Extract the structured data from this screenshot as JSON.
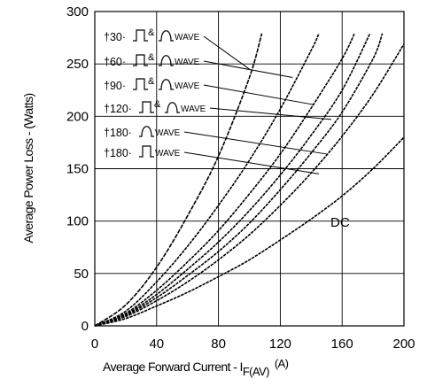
{
  "chart_data": {
    "type": "line",
    "title": "",
    "xlabel": "Average Forward Current - I",
    "xlabel_sub": "F(AV)",
    "xlabel_unit": "(A)",
    "ylabel": "Average Power Loss - (Watts)",
    "xlim": [
      0,
      200
    ],
    "ylim": [
      0,
      300
    ],
    "xticks": [
      "0",
      "40",
      "80",
      "120",
      "160",
      "200"
    ],
    "yticks": [
      "0",
      "50",
      "100",
      "150",
      "200",
      "250",
      "300"
    ],
    "grid": true,
    "legend_labels": [
      {
        "prefix": "†",
        "angle": "30",
        "waves": "square-sine",
        "amp": "&",
        "suffix": "WAVE"
      },
      {
        "prefix": "†",
        "angle": "60",
        "waves": "square-sine",
        "amp": "&",
        "suffix": "WAVE"
      },
      {
        "prefix": "†",
        "angle": "90",
        "waves": "square-sine",
        "amp": "&",
        "suffix": "WAVE"
      },
      {
        "prefix": "†",
        "angle": "120",
        "waves": "square-sine",
        "amp": "&",
        "suffix": "WAVE"
      },
      {
        "prefix": "†",
        "angle": "180",
        "waves": "sine",
        "amp": "",
        "suffix": "WAVE"
      },
      {
        "prefix": "†",
        "angle": "180",
        "waves": "square",
        "amp": "",
        "suffix": "WAVE"
      }
    ],
    "dc_label": "DC",
    "series": [
      {
        "x": [
          0,
          20,
          40,
          60,
          80,
          100,
          108
        ],
        "y": [
          0,
          20,
          56,
          105,
          162,
          237,
          279
        ]
      },
      {
        "x": [
          0,
          20,
          40,
          60,
          80,
          100,
          120,
          140,
          145
        ],
        "y": [
          0,
          14,
          42,
          76,
          115,
          158,
          207,
          263,
          279
        ]
      },
      {
        "x": [
          0,
          20,
          40,
          60,
          80,
          100,
          120,
          140,
          160,
          168
        ],
        "y": [
          0,
          12,
          34,
          61,
          91,
          126,
          164,
          208,
          255,
          279
        ]
      },
      {
        "x": [
          0,
          20,
          40,
          60,
          80,
          100,
          120,
          140,
          160,
          178
        ],
        "y": [
          0,
          11,
          30,
          54,
          80,
          110,
          144,
          182,
          225,
          279
        ]
      },
      {
        "x": [
          0,
          20,
          40,
          60,
          80,
          100,
          120,
          140,
          160,
          180,
          186
        ],
        "y": [
          0,
          10,
          27,
          48,
          71,
          98,
          130,
          165,
          204,
          255,
          279
        ]
      },
      {
        "x": [
          0,
          20,
          40,
          60,
          80,
          100,
          120,
          140,
          160,
          180,
          200
        ],
        "y": [
          0,
          9,
          24,
          42,
          63,
          87,
          115,
          146,
          181,
          221,
          269
        ]
      },
      {
        "x": [
          0,
          20,
          40,
          60,
          80,
          100,
          120,
          140,
          160,
          180,
          200
        ],
        "y": [
          0,
          7,
          19,
          32,
          47,
          63,
          82,
          102,
          124,
          150,
          180
        ]
      }
    ],
    "leader_targets": [
      {
        "x": 100,
        "y": 245
      },
      {
        "x": 128,
        "y": 237
      },
      {
        "x": 142,
        "y": 211
      },
      {
        "x": 153,
        "y": 197
      },
      {
        "x": 150,
        "y": 164
      },
      {
        "x": 145,
        "y": 145
      }
    ]
  }
}
